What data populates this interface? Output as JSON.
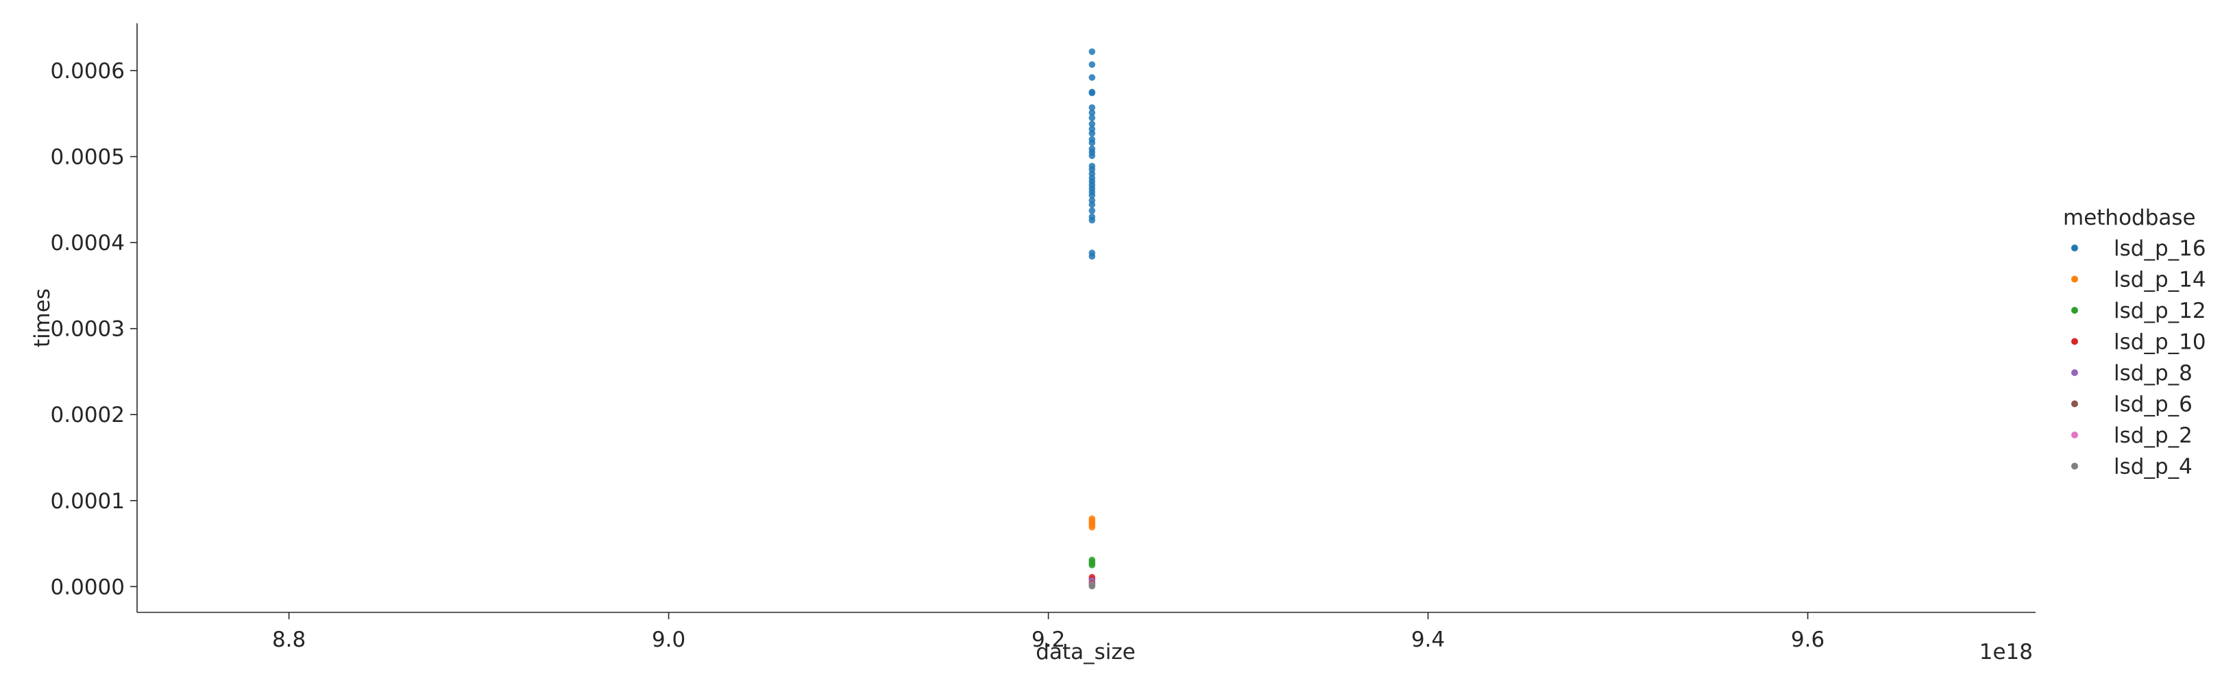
{
  "chart_data": {
    "type": "scatter",
    "title": "",
    "xlabel": "data_size",
    "ylabel": "times",
    "x_offset_label": "1e18",
    "xlim": [
      8.72,
      9.72
    ],
    "ylim": [
      -3e-05,
      0.000655
    ],
    "x_ticks": [
      8.8,
      9.0,
      9.2,
      9.4,
      9.6
    ],
    "x_tick_labels": [
      "8.8",
      "9.0",
      "9.2",
      "9.4",
      "9.6"
    ],
    "y_ticks": [
      0.0,
      0.0001,
      0.0002,
      0.0003,
      0.0004,
      0.0005,
      0.0006
    ],
    "y_tick_labels": [
      "0.0000",
      "0.0001",
      "0.0002",
      "0.0003",
      "0.0004",
      "0.0005",
      "0.0006"
    ],
    "grid": false,
    "legend": {
      "title": "methodbase",
      "placement": "right"
    },
    "series": [
      {
        "name": "lsd_p_16",
        "color": "#1f77b4",
        "x": 9.223,
        "y": [
          0.000622,
          0.000607,
          0.000592,
          0.000575,
          0.000574,
          0.000557,
          0.000551,
          0.000545,
          0.000538,
          0.000532,
          0.000527,
          0.00052,
          0.000516,
          0.000509,
          0.000505,
          0.000501,
          0.000489,
          0.000485,
          0.00048,
          0.000475,
          0.000471,
          0.000467,
          0.000463,
          0.000459,
          0.000455,
          0.000449,
          0.000444,
          0.000437,
          0.00043,
          0.000426,
          0.000388,
          0.000384
        ]
      },
      {
        "name": "lsd_p_14",
        "color": "#ff7f0e",
        "x": 9.223,
        "y": [
          7.9e-05,
          7.7e-05,
          7.5e-05,
          7.3e-05,
          7.1e-05,
          6.9e-05
        ]
      },
      {
        "name": "lsd_p_12",
        "color": "#2ca02c",
        "x": 9.223,
        "y": [
          3.1e-05,
          2.9e-05,
          2.7e-05,
          2.5e-05
        ]
      },
      {
        "name": "lsd_p_10",
        "color": "#d62728",
        "x": 9.223,
        "y": [
          1.1e-05,
          9e-06,
          8e-06
        ]
      },
      {
        "name": "lsd_p_8",
        "color": "#9467bd",
        "x": 9.223,
        "y": [
          7e-06,
          5e-06,
          4e-06
        ]
      },
      {
        "name": "lsd_p_6",
        "color": "#8c564b",
        "x": 9.223,
        "y": [
          3.5e-06,
          3e-06
        ]
      },
      {
        "name": "lsd_p_2",
        "color": "#e377c2",
        "x": 9.223,
        "y": [
          2e-06,
          1.5e-06
        ]
      },
      {
        "name": "lsd_p_4",
        "color": "#7f7f7f",
        "x": 9.223,
        "y": [
          1e-06,
          5e-07
        ]
      }
    ]
  }
}
